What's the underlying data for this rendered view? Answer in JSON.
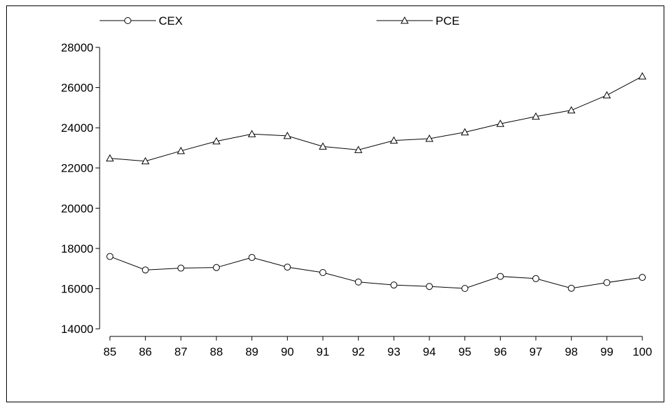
{
  "chart_data": {
    "type": "line",
    "title": "",
    "xlabel": "",
    "ylabel": "",
    "categories": [
      "85",
      "86",
      "87",
      "88",
      "89",
      "90",
      "91",
      "92",
      "93",
      "94",
      "95",
      "96",
      "97",
      "98",
      "99",
      "100"
    ],
    "series": [
      {
        "name": "CEX",
        "marker": "circle",
        "values": [
          17600,
          16930,
          17020,
          17050,
          17550,
          17070,
          16800,
          16330,
          16180,
          16110,
          16010,
          16610,
          16500,
          16020,
          16300,
          16560
        ]
      },
      {
        "name": "PCE",
        "marker": "triangle",
        "values": [
          22480,
          22340,
          22850,
          23330,
          23690,
          23600,
          23070,
          22900,
          23370,
          23460,
          23780,
          24200,
          24560,
          24870,
          25620,
          26560
        ]
      }
    ],
    "ylim": [
      14000,
      28000
    ],
    "yticks": [
      14000,
      16000,
      18000,
      20000,
      22000,
      24000,
      26000,
      28000
    ],
    "grid": false,
    "legend": "top",
    "colors": {
      "line": "#000000",
      "background": "#ffffff"
    }
  }
}
